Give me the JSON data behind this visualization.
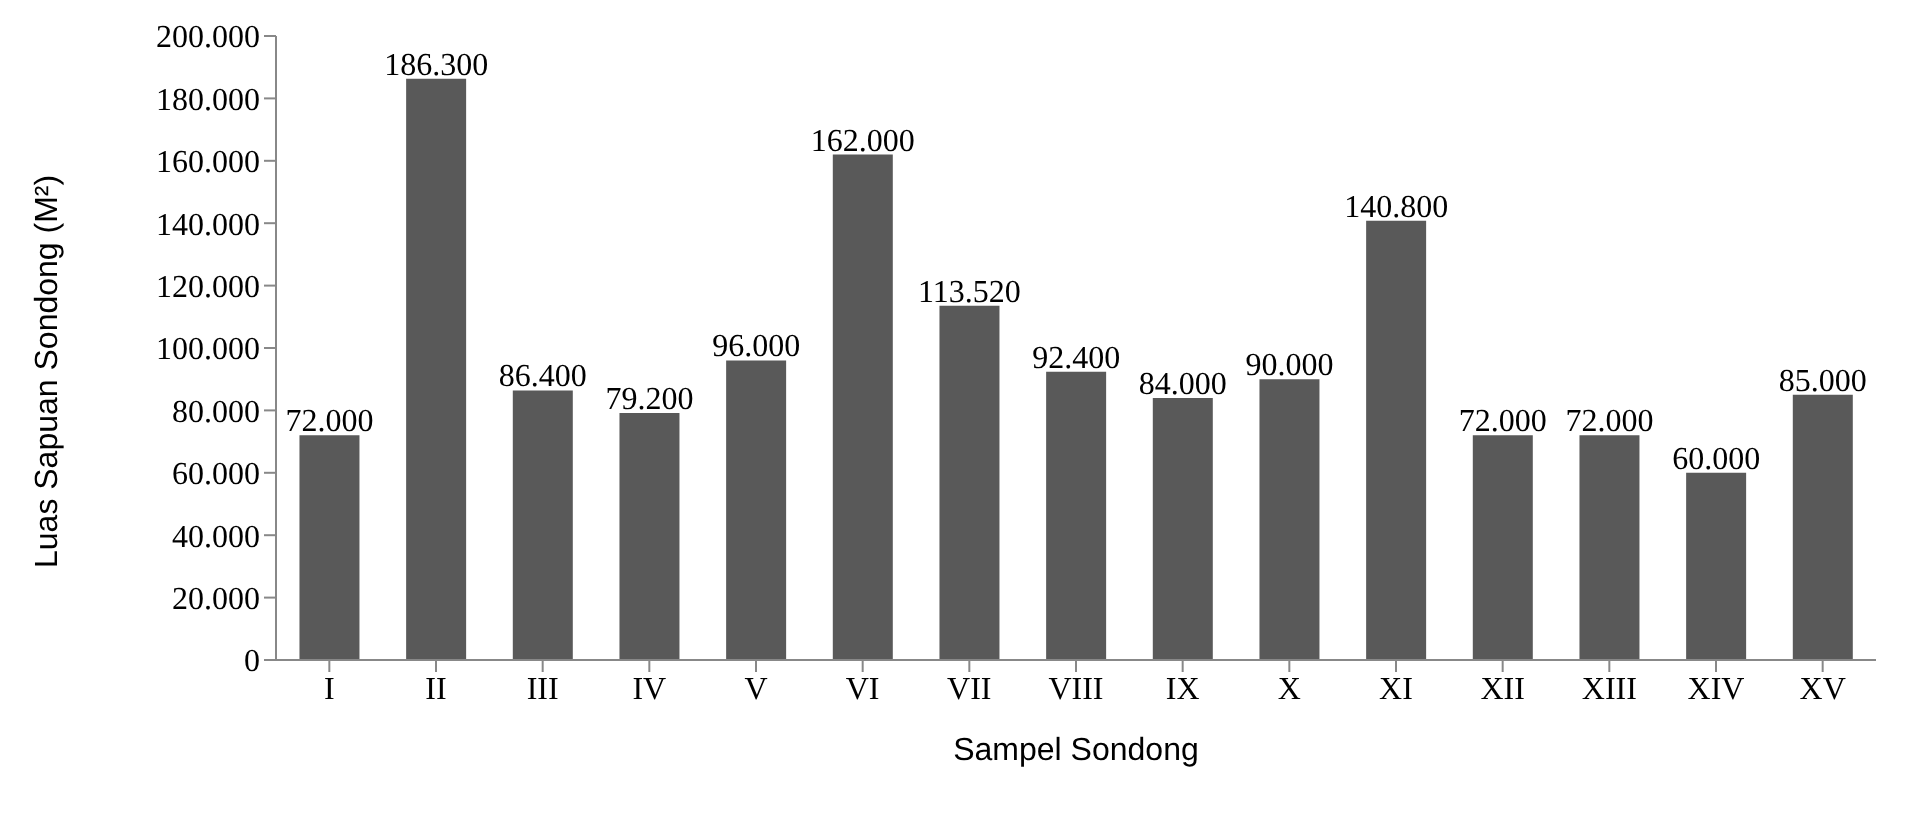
{
  "chart_data": {
    "type": "bar",
    "xlabel": "Sampel Sondong",
    "ylabel": "Luas Sapuan Sondong (M²)",
    "categories": [
      "I",
      "II",
      "III",
      "IV",
      "V",
      "VI",
      "VII",
      "VIII",
      "IX",
      "X",
      "XI",
      "XII",
      "XIII",
      "XIV",
      "XV"
    ],
    "values": [
      72000,
      186300,
      86400,
      79200,
      96000,
      162000,
      113520,
      92400,
      84000,
      90000,
      140800,
      72000,
      72000,
      60000,
      85000
    ],
    "value_labels": [
      "72.000",
      "186.300",
      "86.400",
      "79.200",
      "96.000",
      "162.000",
      "113.520",
      "92.400",
      "84.000",
      "90.000",
      "140.800",
      "72.000",
      "72.000",
      "60.000",
      "85.000"
    ],
    "color": "#595959",
    "ylim": [
      0,
      200000
    ],
    "yticks": [
      0,
      {
        "value": 20000,
        "label": "20.000"
      },
      {
        "value": 40000,
        "label": "40.000"
      },
      {
        "value": 60000,
        "label": "60.000"
      },
      {
        "value": 80000,
        "label": "80.000"
      },
      {
        "value": 100000,
        "label": "100.000"
      },
      {
        "value": 120000,
        "label": "120.000"
      },
      {
        "value": 140000,
        "label": "140.000"
      },
      {
        "value": 160000,
        "label": "160.000"
      },
      {
        "value": 180000,
        "label": "180.000"
      },
      {
        "value": 200000,
        "label": "200.000"
      }
    ],
    "grid": false,
    "legend": false
  }
}
